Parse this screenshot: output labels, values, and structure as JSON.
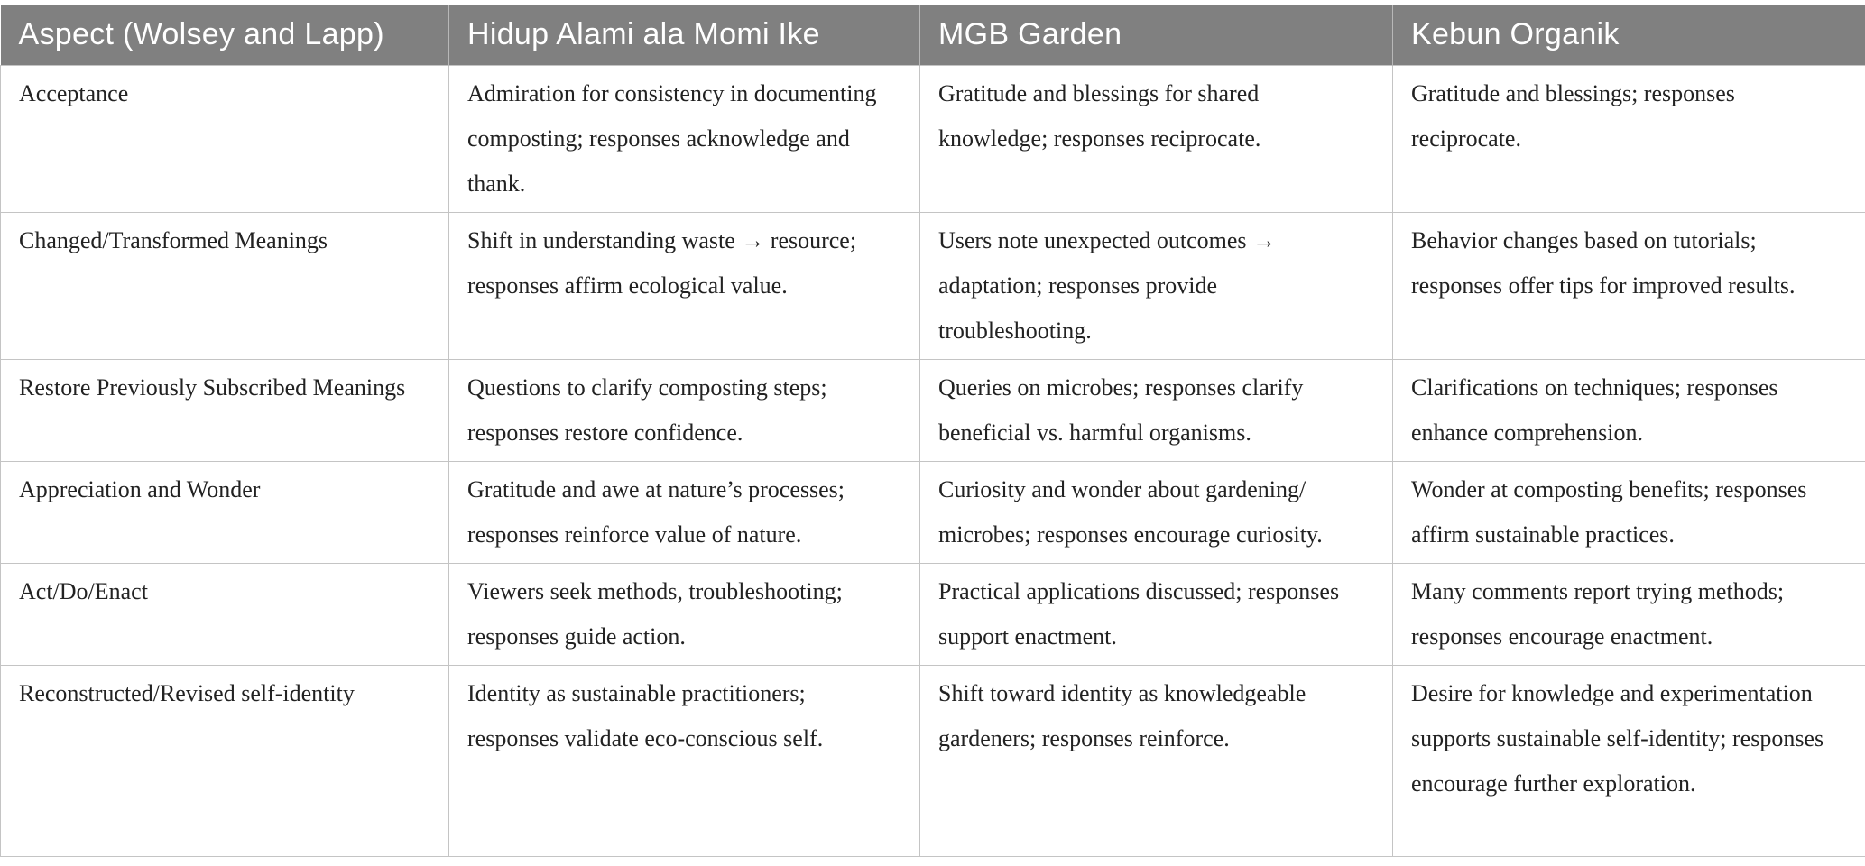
{
  "table": {
    "headers": [
      "Aspect (Wolsey and Lapp)",
      "Hidup Alami ala Momi Ike",
      "MGB Garden",
      "Kebun Organik"
    ],
    "rows": [
      [
        "Acceptance",
        "Admiration for consistency in documenting composting; responses acknowledge and thank.",
        "Gratitude and blessings for shared knowledge; responses reciprocate.",
        "Gratitude and blessings; responses reciprocate."
      ],
      [
        "Changed/Transformed Meanings",
        "Shift in understanding waste → resource; responses affirm ecological value.",
        "Users note unexpected outcomes → adaptation; responses provide troubleshooting.",
        "Behavior changes based on tutorials; responses offer tips for improved results."
      ],
      [
        "Restore Previously Subscribed Meanings",
        "Questions to clarify composting steps; responses restore confidence.",
        "Queries on microbes; responses clarify beneficial vs. harmful organisms.",
        "Clarifications on techniques; responses enhance comprehension."
      ],
      [
        "Appreciation and Wonder",
        "Gratitude and awe at nature’s processes; responses reinforce value of nature.",
        "Curiosity and wonder about gardening/ microbes; responses encourage curiosity.",
        "Wonder at composting benefits; responses affirm sustainable practices."
      ],
      [
        "Act/Do/Enact",
        "Viewers seek methods, troubleshooting; responses guide action.",
        "Practical applications discussed; responses support enactment.",
        "Many comments report trying methods; responses encourage enactment."
      ],
      [
        "Reconstructed/Revised self-identity",
        "Identity as sustainable practitioners; responses validate eco-conscious self.",
        "Shift toward identity as knowledgeable gardeners; responses reinforce.",
        "Desire for knowledge and experimentation supports sustainable self-identity; responses encourage further exploration."
      ]
    ]
  },
  "colors": {
    "header_bg": "#808080",
    "header_text": "#ffffff",
    "border": "#c4c4c4"
  }
}
